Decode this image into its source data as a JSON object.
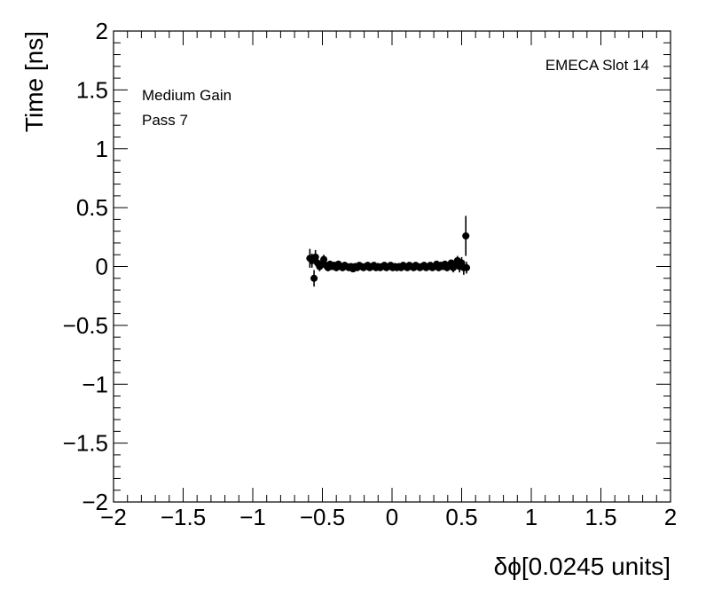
{
  "chart_data": {
    "type": "scatter",
    "xlabel": "δϕ[0.0245 units]",
    "ylabel": "Time [ns]",
    "xlim": [
      -2,
      2
    ],
    "ylim": [
      -2,
      2
    ],
    "x_ticks": [
      -2,
      -1.5,
      -1,
      -0.5,
      0,
      0.5,
      1,
      1.5,
      2
    ],
    "x_tick_labels": [
      "−2",
      "−1.5",
      "−1",
      "−0.5",
      "0",
      "0.5",
      "1",
      "1.5",
      "2"
    ],
    "y_ticks": [
      -2,
      -1.5,
      -1,
      -0.5,
      0,
      0.5,
      1,
      1.5,
      2
    ],
    "y_tick_labels": [
      "−2",
      "−1.5",
      "−1",
      "−0.5",
      "0",
      "0.5",
      "1",
      "1.5",
      "2"
    ],
    "annotations": {
      "slot": "EMECA Slot 14",
      "gain": "Medium Gain",
      "pass": "Pass 7"
    },
    "grid": false,
    "points": [
      {
        "x": -0.59,
        "y": 0.07,
        "err": 0.08
      },
      {
        "x": -0.575,
        "y": 0.05,
        "err": 0.06
      },
      {
        "x": -0.56,
        "y": -0.1,
        "err": 0.07
      },
      {
        "x": -0.55,
        "y": 0.08,
        "err": 0.06
      },
      {
        "x": -0.535,
        "y": 0.03,
        "err": 0.05
      },
      {
        "x": -0.52,
        "y": 0.0,
        "err": 0.04
      },
      {
        "x": -0.505,
        "y": 0.02,
        "err": 0.04
      },
      {
        "x": -0.49,
        "y": 0.06,
        "err": 0.04
      },
      {
        "x": -0.475,
        "y": 0.01,
        "err": 0.03
      },
      {
        "x": -0.46,
        "y": -0.01,
        "err": 0.03
      },
      {
        "x": -0.445,
        "y": 0.02,
        "err": 0.03
      },
      {
        "x": -0.43,
        "y": 0.0,
        "err": 0.03
      },
      {
        "x": -0.415,
        "y": 0.01,
        "err": 0.03
      },
      {
        "x": -0.4,
        "y": -0.01,
        "err": 0.03
      },
      {
        "x": -0.385,
        "y": 0.02,
        "err": 0.03
      },
      {
        "x": -0.37,
        "y": 0.0,
        "err": 0.03
      },
      {
        "x": -0.355,
        "y": -0.01,
        "err": 0.03
      },
      {
        "x": -0.34,
        "y": 0.01,
        "err": 0.03
      },
      {
        "x": -0.325,
        "y": 0.0,
        "err": 0.02
      },
      {
        "x": -0.31,
        "y": -0.01,
        "err": 0.02
      },
      {
        "x": -0.295,
        "y": 0.0,
        "err": 0.02
      },
      {
        "x": -0.28,
        "y": -0.02,
        "err": 0.02
      },
      {
        "x": -0.265,
        "y": 0.0,
        "err": 0.02
      },
      {
        "x": -0.25,
        "y": -0.01,
        "err": 0.02
      },
      {
        "x": -0.235,
        "y": 0.01,
        "err": 0.02
      },
      {
        "x": -0.22,
        "y": 0.0,
        "err": 0.02
      },
      {
        "x": -0.205,
        "y": -0.01,
        "err": 0.02
      },
      {
        "x": -0.19,
        "y": 0.0,
        "err": 0.02
      },
      {
        "x": -0.175,
        "y": 0.01,
        "err": 0.02
      },
      {
        "x": -0.16,
        "y": -0.01,
        "err": 0.02
      },
      {
        "x": -0.145,
        "y": 0.0,
        "err": 0.02
      },
      {
        "x": -0.13,
        "y": 0.01,
        "err": 0.02
      },
      {
        "x": -0.115,
        "y": -0.01,
        "err": 0.02
      },
      {
        "x": -0.1,
        "y": 0.0,
        "err": 0.02
      },
      {
        "x": -0.085,
        "y": -0.01,
        "err": 0.02
      },
      {
        "x": -0.07,
        "y": 0.0,
        "err": 0.02
      },
      {
        "x": -0.055,
        "y": 0.01,
        "err": 0.02
      },
      {
        "x": -0.04,
        "y": -0.01,
        "err": 0.02
      },
      {
        "x": -0.025,
        "y": 0.0,
        "err": 0.02
      },
      {
        "x": -0.01,
        "y": 0.01,
        "err": 0.02
      },
      {
        "x": 0.005,
        "y": -0.01,
        "err": 0.02
      },
      {
        "x": 0.02,
        "y": 0.0,
        "err": 0.02
      },
      {
        "x": 0.035,
        "y": -0.01,
        "err": 0.02
      },
      {
        "x": 0.05,
        "y": 0.0,
        "err": 0.02
      },
      {
        "x": 0.065,
        "y": -0.01,
        "err": 0.02
      },
      {
        "x": 0.08,
        "y": 0.01,
        "err": 0.02
      },
      {
        "x": 0.095,
        "y": 0.0,
        "err": 0.02
      },
      {
        "x": 0.11,
        "y": -0.01,
        "err": 0.02
      },
      {
        "x": 0.125,
        "y": 0.01,
        "err": 0.02
      },
      {
        "x": 0.14,
        "y": 0.0,
        "err": 0.02
      },
      {
        "x": 0.155,
        "y": -0.01,
        "err": 0.02
      },
      {
        "x": 0.17,
        "y": 0.01,
        "err": 0.02
      },
      {
        "x": 0.185,
        "y": 0.0,
        "err": 0.02
      },
      {
        "x": 0.2,
        "y": -0.01,
        "err": 0.02
      },
      {
        "x": 0.215,
        "y": 0.0,
        "err": 0.02
      },
      {
        "x": 0.23,
        "y": 0.01,
        "err": 0.02
      },
      {
        "x": 0.245,
        "y": -0.01,
        "err": 0.02
      },
      {
        "x": 0.26,
        "y": 0.0,
        "err": 0.02
      },
      {
        "x": 0.275,
        "y": 0.01,
        "err": 0.02
      },
      {
        "x": 0.29,
        "y": -0.01,
        "err": 0.02
      },
      {
        "x": 0.305,
        "y": 0.0,
        "err": 0.02
      },
      {
        "x": 0.32,
        "y": 0.02,
        "err": 0.03
      },
      {
        "x": 0.335,
        "y": -0.01,
        "err": 0.03
      },
      {
        "x": 0.35,
        "y": 0.01,
        "err": 0.03
      },
      {
        "x": 0.365,
        "y": 0.0,
        "err": 0.03
      },
      {
        "x": 0.38,
        "y": 0.02,
        "err": 0.03
      },
      {
        "x": 0.395,
        "y": -0.01,
        "err": 0.03
      },
      {
        "x": 0.41,
        "y": 0.01,
        "err": 0.03
      },
      {
        "x": 0.425,
        "y": 0.03,
        "err": 0.03
      },
      {
        "x": 0.44,
        "y": -0.01,
        "err": 0.04
      },
      {
        "x": 0.455,
        "y": 0.02,
        "err": 0.04
      },
      {
        "x": 0.47,
        "y": 0.05,
        "err": 0.04
      },
      {
        "x": 0.485,
        "y": 0.0,
        "err": 0.05
      },
      {
        "x": 0.5,
        "y": 0.03,
        "err": 0.05
      },
      {
        "x": 0.515,
        "y": -0.01,
        "err": 0.06
      },
      {
        "x": 0.53,
        "y": 0.26,
        "err": 0.17
      },
      {
        "x": 0.535,
        "y": -0.01,
        "err": 0.05
      }
    ]
  }
}
